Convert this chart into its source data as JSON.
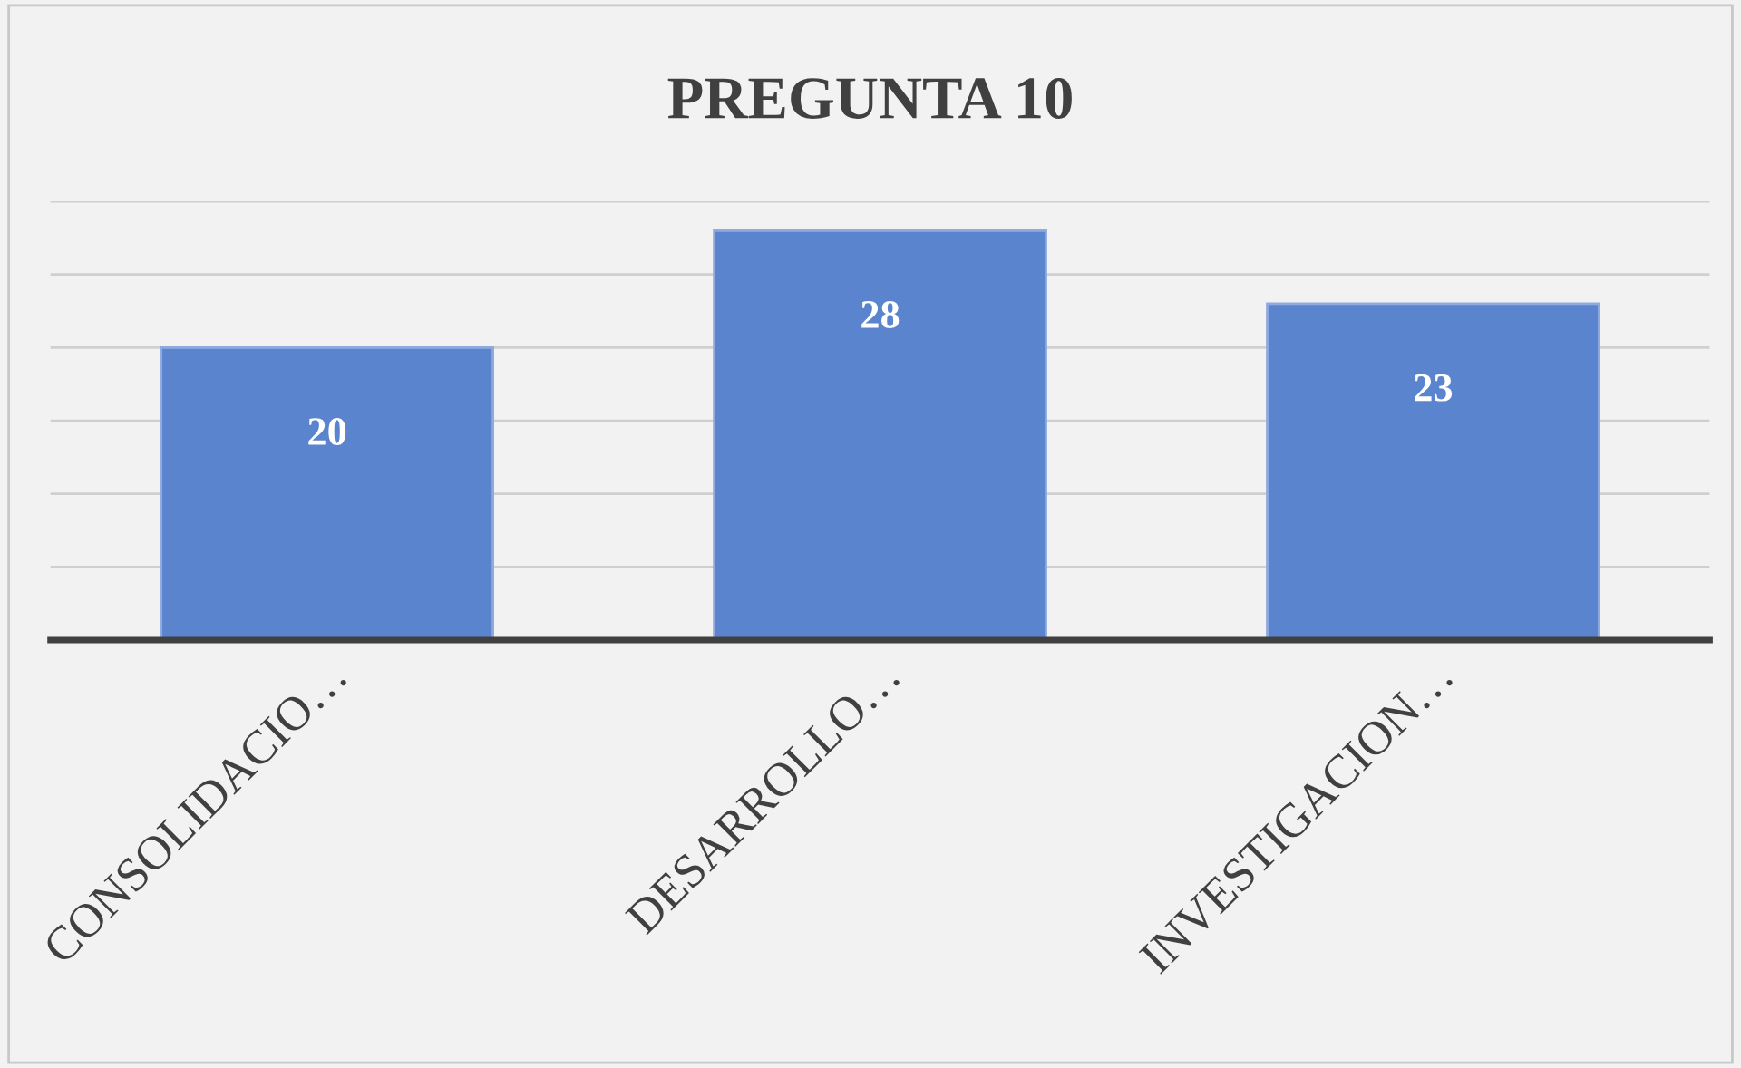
{
  "chart_data": {
    "type": "bar",
    "title": "PREGUNTA 10",
    "categories": [
      "CONSOLIDACIO…",
      "DESARROLLO…",
      "INVESTIGACION…"
    ],
    "values": [
      20,
      28,
      23
    ],
    "color": "#5b84cf",
    "ylim": [
      0,
      30
    ],
    "yticks": [
      {
        "value": 0,
        "label": null
      },
      {
        "value": 5,
        "label": null
      },
      {
        "value": 10,
        "label": null
      },
      {
        "value": 15,
        "label": null
      },
      {
        "value": 20,
        "label": null
      },
      {
        "value": 25,
        "label": null
      },
      {
        "value": 30,
        "label": null
      }
    ],
    "tick_labels": "x",
    "grid": "y",
    "data_labels": true
  }
}
